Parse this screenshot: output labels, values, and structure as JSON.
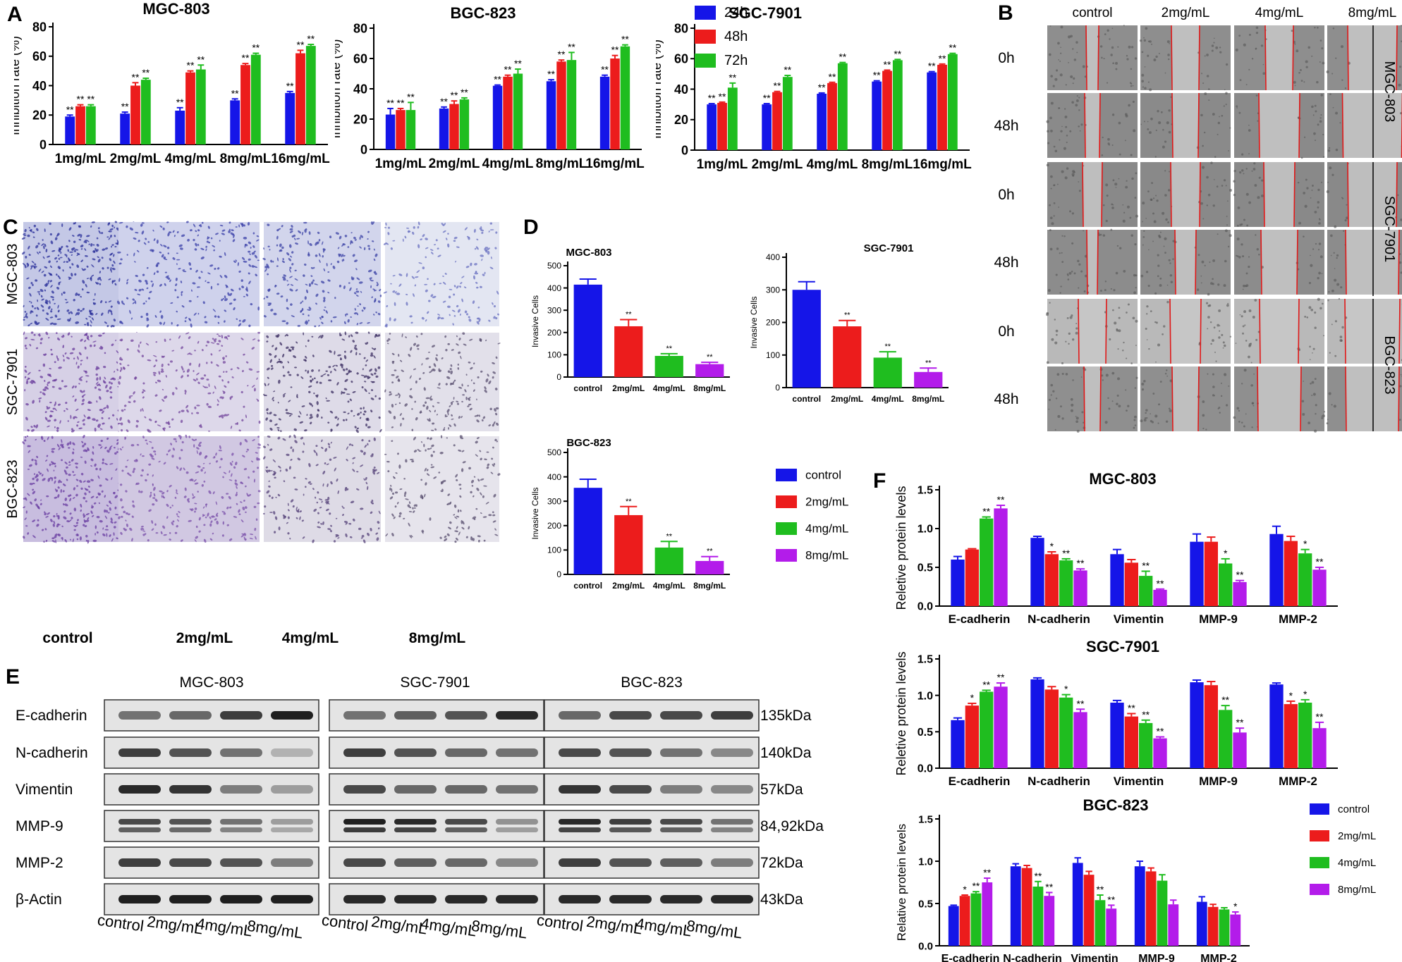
{
  "colors": {
    "blue": "#1515e8",
    "red": "#ec1c1c",
    "green": "#1fbd1f",
    "purple": "#b31cea",
    "redline": "#e01818"
  },
  "panel_labels": {
    "A": "A",
    "B": "B",
    "C": "C",
    "D": "D",
    "E": "E",
    "F": "F"
  },
  "panel_b": {
    "columns": [
      "control",
      "2mg/mL",
      "4mg/mL",
      "8mg/mL"
    ],
    "times": [
      "0h",
      "48h",
      "0h",
      "48h",
      "0h",
      "48h"
    ],
    "cell_lines": [
      "MGC-803",
      "SGC-7901",
      "BGC-823"
    ]
  },
  "panel_c": {
    "columns": [
      "control",
      "2mg/mL",
      "4mg/mL",
      "8mg/mL"
    ],
    "rows": [
      "MGC-803",
      "SGC-7901",
      "BGC-823"
    ]
  },
  "panel_e": {
    "groups": [
      "MGC-803",
      "SGC-7901",
      "BGC-823"
    ],
    "proteins": [
      "E-cadherin",
      "N-cadherin",
      "Vimentin",
      "MMP-9",
      "MMP-2",
      "β-Actin"
    ],
    "sizes": [
      "135kDa",
      "140kDa",
      "57kDa",
      "84,92kDa",
      "72kDa",
      "43kDa"
    ],
    "lanes": [
      "control",
      "2mg/mL",
      "4mg/mL",
      "8mg/mL"
    ]
  },
  "chart_data": [
    {
      "id": "A1",
      "type": "bar",
      "title": "MGC-803",
      "ylabel": "Inhibition rate (%)",
      "ylim": [
        0,
        80
      ],
      "yticks": [
        0,
        20,
        40,
        60,
        80
      ],
      "categories": [
        "1mg/mL",
        "2mg/mL",
        "4mg/mL",
        "8mg/mL",
        "16mg/mL"
      ],
      "series": [
        {
          "name": "24h",
          "color": "blue",
          "values": [
            19,
            21,
            23,
            30,
            35
          ],
          "errors": [
            1,
            1,
            2,
            1,
            1
          ],
          "sig": [
            "**",
            "**",
            "**",
            "**",
            "**"
          ]
        },
        {
          "name": "48h",
          "color": "red",
          "values": [
            26,
            40,
            49,
            54,
            62
          ],
          "errors": [
            1,
            2,
            1,
            1,
            2
          ],
          "sig": [
            "**",
            "**",
            "**",
            "**",
            "**"
          ]
        },
        {
          "name": "72h",
          "color": "green",
          "values": [
            26,
            44,
            51,
            61,
            67
          ],
          "errors": [
            1,
            1,
            3,
            1,
            1
          ],
          "sig": [
            "**",
            "**",
            "**",
            "**",
            "**"
          ]
        }
      ]
    },
    {
      "id": "A2",
      "type": "bar",
      "title": "BGC-823",
      "ylabel": "Inhibition rate (%)",
      "ylim": [
        0,
        80
      ],
      "yticks": [
        0,
        20,
        40,
        60,
        80
      ],
      "categories": [
        "1mg/mL",
        "2mg/mL",
        "4mg/mL",
        "8mg/mL",
        "16mg/mL"
      ],
      "series": [
        {
          "name": "24h",
          "color": "blue",
          "values": [
            23,
            27,
            42,
            45,
            48
          ],
          "errors": [
            4,
            1,
            0.5,
            1,
            1
          ],
          "sig": [
            "**",
            "**",
            "**",
            "**",
            "**"
          ]
        },
        {
          "name": "48h",
          "color": "red",
          "values": [
            26,
            30,
            48,
            58,
            60
          ],
          "errors": [
            1,
            2,
            1,
            1,
            2
          ],
          "sig": [
            "**",
            "**",
            "**",
            "**",
            "**"
          ]
        },
        {
          "name": "72h",
          "color": "green",
          "values": [
            26,
            33,
            50,
            59,
            68
          ],
          "errors": [
            5,
            1,
            3,
            5,
            1
          ],
          "sig": [
            "**",
            "**",
            "**",
            "**",
            "**"
          ]
        }
      ]
    },
    {
      "id": "A3",
      "type": "bar",
      "title": "SGC-7901",
      "ylabel": "Inhibition rate (%)",
      "ylim": [
        0,
        80
      ],
      "yticks": [
        0,
        20,
        40,
        60,
        80
      ],
      "categories": [
        "1mg/mL",
        "2mg/mL",
        "4mg/mL",
        "8mg/mL",
        "16mg/mL"
      ],
      "legend": [
        "24h",
        "48h",
        "72h"
      ],
      "series": [
        {
          "name": "24h",
          "color": "blue",
          "values": [
            30,
            30,
            37,
            45,
            51
          ],
          "errors": [
            0.5,
            0.5,
            0.5,
            0.5,
            0.5
          ],
          "sig": [
            "**",
            "**",
            "**",
            "**",
            "**"
          ]
        },
        {
          "name": "48h",
          "color": "red",
          "values": [
            31,
            38,
            44,
            52,
            56
          ],
          "errors": [
            0.5,
            0.5,
            0.5,
            0.5,
            0.5
          ],
          "sig": [
            "**",
            "**",
            "**",
            "**",
            "**"
          ]
        },
        {
          "name": "72h",
          "color": "green",
          "values": [
            41,
            48,
            57,
            59,
            63
          ],
          "errors": [
            3,
            1,
            0.5,
            0.5,
            0.5
          ],
          "sig": [
            "**",
            "**",
            "**",
            "**",
            "**"
          ]
        }
      ]
    },
    {
      "id": "D1",
      "type": "bar",
      "title": "MGC-803",
      "ylabel": "Invasive Cells",
      "ylim": [
        0,
        500
      ],
      "yticks": [
        0,
        100,
        200,
        300,
        400,
        500
      ],
      "categories": [
        "control",
        "2mg/mL",
        "4mg/mL",
        "8mg/mL"
      ],
      "values": [
        415,
        228,
        95,
        58
      ],
      "errors": [
        25,
        30,
        10,
        8
      ],
      "bar_colors": [
        "blue",
        "red",
        "green",
        "purple"
      ],
      "sig": [
        "",
        "**",
        "**",
        "**"
      ]
    },
    {
      "id": "D2",
      "type": "bar",
      "title": "SGC-7901",
      "ylabel": "Invasive Cells",
      "ylim": [
        0,
        400
      ],
      "yticks": [
        0,
        100,
        200,
        300,
        400
      ],
      "categories": [
        "control",
        "2mg/mL",
        "4mg/mL",
        "8mg/mL"
      ],
      "values": [
        300,
        188,
        92,
        48
      ],
      "errors": [
        25,
        18,
        18,
        12
      ],
      "bar_colors": [
        "blue",
        "red",
        "green",
        "purple"
      ],
      "sig": [
        "",
        "**",
        "**",
        "**"
      ]
    },
    {
      "id": "D3",
      "type": "bar",
      "title": "BGC-823",
      "ylabel": "Invasive Cells",
      "ylim": [
        0,
        500
      ],
      "yticks": [
        0,
        100,
        200,
        300,
        400,
        500
      ],
      "categories": [
        "control",
        "2mg/mL",
        "4mg/mL",
        "8mg/mL"
      ],
      "values": [
        355,
        243,
        110,
        55
      ],
      "errors": [
        35,
        35,
        25,
        18
      ],
      "bar_colors": [
        "blue",
        "red",
        "green",
        "purple"
      ],
      "sig": [
        "",
        "**",
        "**",
        "**"
      ],
      "legend": [
        "control",
        "2mg/mL",
        "4mg/mL",
        "8mg/mL"
      ]
    },
    {
      "id": "F1",
      "type": "bar",
      "title": "MGC-803",
      "ylabel": "Reletive protein levels",
      "ylim": [
        0,
        1.5
      ],
      "yticks": [
        0.0,
        0.5,
        1.0,
        1.5
      ],
      "categories": [
        "E-cadherin",
        "N-cadherin",
        "Vimentin",
        "MMP-9",
        "MMP-2"
      ],
      "series": [
        {
          "name": "control",
          "color": "blue",
          "values": [
            0.6,
            0.88,
            0.67,
            0.83,
            0.93
          ],
          "errors": [
            0.04,
            0.02,
            0.06,
            0.1,
            0.1
          ],
          "sig": [
            "",
            "",
            "",
            "",
            ""
          ]
        },
        {
          "name": "2mg/mL",
          "color": "red",
          "values": [
            0.73,
            0.67,
            0.56,
            0.83,
            0.84
          ],
          "errors": [
            0.01,
            0.03,
            0.04,
            0.06,
            0.06
          ],
          "sig": [
            "",
            "*",
            "",
            "",
            ""
          ]
        },
        {
          "name": "4mg/mL",
          "color": "green",
          "values": [
            1.13,
            0.59,
            0.39,
            0.55,
            0.68
          ],
          "errors": [
            0.02,
            0.02,
            0.06,
            0.06,
            0.05
          ],
          "sig": [
            "**",
            "**",
            "**",
            "*",
            "*"
          ]
        },
        {
          "name": "8mg/mL",
          "color": "purple",
          "values": [
            1.26,
            0.46,
            0.21,
            0.31,
            0.47
          ],
          "errors": [
            0.04,
            0.02,
            0.01,
            0.02,
            0.03
          ],
          "sig": [
            "**",
            "**",
            "**",
            "**",
            "**"
          ]
        }
      ]
    },
    {
      "id": "F2",
      "type": "bar",
      "title": "SGC-7901",
      "ylabel": "Reletive protein levels",
      "ylim": [
        0,
        1.5
      ],
      "yticks": [
        0.0,
        0.5,
        1.0,
        1.5
      ],
      "categories": [
        "E-cadherin",
        "N-cadherin",
        "Vimentin",
        "MMP-9",
        "MMP-2"
      ],
      "series": [
        {
          "name": "control",
          "color": "blue",
          "values": [
            0.66,
            1.22,
            0.9,
            1.18,
            1.15
          ],
          "errors": [
            0.03,
            0.02,
            0.03,
            0.03,
            0.02
          ],
          "sig": [
            "",
            "",
            "",
            "",
            ""
          ]
        },
        {
          "name": "2mg/mL",
          "color": "red",
          "values": [
            0.86,
            1.08,
            0.71,
            1.14,
            0.88
          ],
          "errors": [
            0.03,
            0.04,
            0.04,
            0.05,
            0.04
          ],
          "sig": [
            "*",
            "",
            "**",
            "",
            "*"
          ]
        },
        {
          "name": "4mg/mL",
          "color": "green",
          "values": [
            1.05,
            0.97,
            0.62,
            0.8,
            0.9
          ],
          "errors": [
            0.02,
            0.04,
            0.04,
            0.06,
            0.04
          ],
          "sig": [
            "**",
            "*",
            "**",
            "**",
            "*"
          ]
        },
        {
          "name": "8mg/mL",
          "color": "purple",
          "values": [
            1.12,
            0.77,
            0.41,
            0.49,
            0.55
          ],
          "errors": [
            0.05,
            0.04,
            0.02,
            0.06,
            0.08
          ],
          "sig": [
            "**",
            "**",
            "**",
            "**",
            "**"
          ]
        }
      ]
    },
    {
      "id": "F3",
      "type": "bar",
      "title": "BGC-823",
      "ylabel": "Relative protein levels",
      "ylim": [
        0,
        1.5
      ],
      "yticks": [
        0.0,
        0.5,
        1.0,
        1.5
      ],
      "categories": [
        "E-cadherin",
        "N-cadherin",
        "Vimentin",
        "MMP-9",
        "MMP-2"
      ],
      "legend": [
        "control",
        "2mg/mL",
        "4mg/mL",
        "8mg/mL"
      ],
      "series": [
        {
          "name": "control",
          "color": "blue",
          "values": [
            0.47,
            0.94,
            0.98,
            0.94,
            0.52
          ],
          "errors": [
            0.01,
            0.03,
            0.06,
            0.06,
            0.06
          ],
          "sig": [
            "",
            "",
            "",
            "",
            ""
          ]
        },
        {
          "name": "2mg/mL",
          "color": "red",
          "values": [
            0.59,
            0.92,
            0.84,
            0.88,
            0.46
          ],
          "errors": [
            0.01,
            0.03,
            0.04,
            0.04,
            0.03
          ],
          "sig": [
            "*",
            "",
            "",
            "",
            ""
          ]
        },
        {
          "name": "4mg/mL",
          "color": "green",
          "values": [
            0.62,
            0.7,
            0.54,
            0.77,
            0.43
          ],
          "errors": [
            0.02,
            0.06,
            0.06,
            0.07,
            0.02
          ],
          "sig": [
            "**",
            "**",
            "**",
            "",
            ""
          ]
        },
        {
          "name": "8mg/mL",
          "color": "purple",
          "values": [
            0.75,
            0.59,
            0.44,
            0.49,
            0.37
          ],
          "errors": [
            0.05,
            0.04,
            0.04,
            0.05,
            0.03
          ],
          "sig": [
            "**",
            "**",
            "**",
            "",
            "*"
          ]
        }
      ]
    }
  ]
}
